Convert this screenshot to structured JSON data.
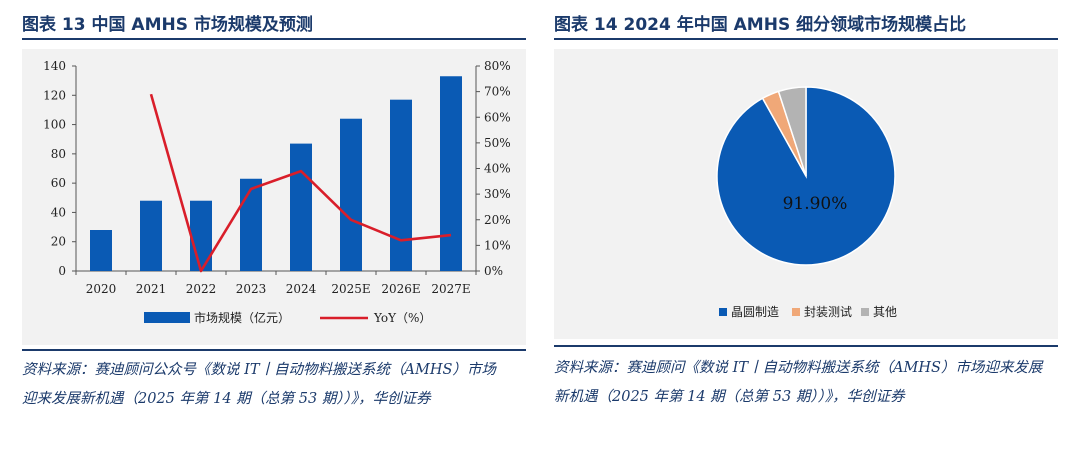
{
  "left": {
    "title": "图表 13   中国 AMHS 市场规模及预测",
    "source": "资料来源：赛迪顾问公众号《数说 IT丨自动物料搬送系统（AMHS）市场迎来发展新机遇（2025 年第 14 期（总第 53 期））》，华创证券"
  },
  "right": {
    "title": "图表 14   2024 年中国 AMHS 细分领域市场规模占比",
    "source": "资料来源：赛迪顾问《数说 IT丨自动物料搬送系统（AMHS）市场迎来发展新机遇（2025 年第 14 期（总第 53 期））》，华创证券"
  },
  "colors": {
    "title": "#1b3a6b",
    "bar": "#0a5ab4",
    "line": "#d91e2a",
    "pie_main": "#0a5ab4",
    "pie_second": "#f0a878",
    "pie_third": "#b3b3b3"
  },
  "chart_data": [
    {
      "type": "bar",
      "categories": [
        "2020",
        "2021",
        "2022",
        "2023",
        "2024",
        "2025E",
        "2026E",
        "2027E"
      ],
      "series": [
        {
          "name": "市场规模（亿元）",
          "type": "bar",
          "axis": "left",
          "values": [
            28,
            48,
            48,
            63,
            87,
            104,
            117,
            133
          ]
        },
        {
          "name": "YoY（%）",
          "type": "line",
          "axis": "right",
          "values": [
            null,
            69,
            0,
            32,
            39,
            20,
            12,
            14
          ]
        }
      ],
      "ylim": [
        0,
        140
      ],
      "yticks": [
        "0",
        "20",
        "40",
        "60",
        "80",
        "100",
        "120",
        "140"
      ],
      "y2lim": [
        0,
        80
      ],
      "y2ticks": [
        "0%",
        "10%",
        "20%",
        "30%",
        "40%",
        "50%",
        "60%",
        "70%",
        "80%"
      ],
      "legend_position": "bottom"
    },
    {
      "type": "pie",
      "labels": [
        "晶圆制造",
        "封装测试",
        "其他"
      ],
      "values": [
        91.9,
        3.1,
        5.0
      ],
      "data_label": "91.90%",
      "legend_position": "bottom"
    }
  ]
}
